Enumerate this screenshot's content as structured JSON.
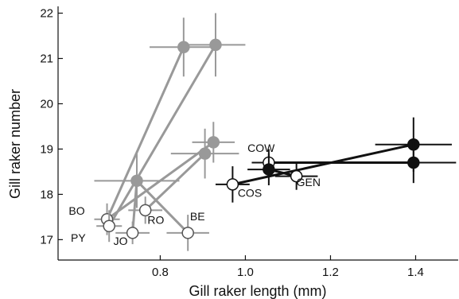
{
  "chart_data": {
    "type": "scatter",
    "title": "",
    "xlabel": "Gill raker length (mm)",
    "ylabel": "Gill raker number",
    "xlim": [
      0.56,
      1.5
    ],
    "ylim": [
      16.55,
      22.15
    ],
    "xticks": [
      0.8,
      1.0,
      1.2,
      1.4
    ],
    "yticks": [
      17,
      18,
      19,
      20,
      21,
      22
    ],
    "grid": false,
    "colors": {
      "gray": "#999999",
      "black": "#111111",
      "open_fill": "#ffffff"
    },
    "points": [
      {
        "id": "BO_open",
        "x": 0.675,
        "y": 17.45,
        "xerr": 0.03,
        "yerr": 0.35,
        "color": "gray",
        "fill": "open"
      },
      {
        "id": "PY_open",
        "x": 0.68,
        "y": 17.3,
        "xerr": 0.03,
        "yerr": 0.35,
        "color": "gray",
        "fill": "open"
      },
      {
        "id": "JO_open",
        "x": 0.735,
        "y": 17.15,
        "xerr": 0.04,
        "yerr": 0.25,
        "color": "gray",
        "fill": "open"
      },
      {
        "id": "RO_open",
        "x": 0.765,
        "y": 17.65,
        "xerr": 0.04,
        "yerr": 0.3,
        "color": "gray",
        "fill": "open"
      },
      {
        "id": "BE_open",
        "x": 0.865,
        "y": 17.15,
        "xerr": 0.05,
        "yerr": 0.4,
        "color": "gray",
        "fill": "open"
      },
      {
        "id": "g_f1",
        "x": 0.855,
        "y": 21.25,
        "xerr": 0.08,
        "yerr": 0.65,
        "color": "gray",
        "fill": "solid"
      },
      {
        "id": "g_f2",
        "x": 0.93,
        "y": 21.3,
        "xerr": 0.07,
        "yerr": 0.7,
        "color": "gray",
        "fill": "solid"
      },
      {
        "id": "g_f3",
        "x": 0.745,
        "y": 18.3,
        "xerr": 0.1,
        "yerr": 0.6,
        "color": "gray",
        "fill": "solid"
      },
      {
        "id": "g_f4",
        "x": 0.905,
        "y": 18.9,
        "xerr": 0.08,
        "yerr": 0.55,
        "color": "gray",
        "fill": "solid"
      },
      {
        "id": "g_f5",
        "x": 0.925,
        "y": 19.15,
        "xerr": 0.05,
        "yerr": 0.45,
        "color": "gray",
        "fill": "solid"
      },
      {
        "id": "COS_open",
        "x": 0.97,
        "y": 18.22,
        "xerr": 0.04,
        "yerr": 0.4,
        "color": "black",
        "fill": "open"
      },
      {
        "id": "COW_open",
        "x": 1.055,
        "y": 18.7,
        "xerr": 0.04,
        "yerr": 0.3,
        "color": "black",
        "fill": "open"
      },
      {
        "id": "GEN_open",
        "x": 1.12,
        "y": 18.4,
        "xerr": 0.05,
        "yerr": 0.3,
        "color": "black",
        "fill": "open"
      },
      {
        "id": "b_f1",
        "x": 1.055,
        "y": 18.55,
        "xerr": 0.05,
        "yerr": 0.35,
        "color": "black",
        "fill": "solid"
      },
      {
        "id": "b_f2",
        "x": 1.395,
        "y": 19.1,
        "xerr": 0.09,
        "yerr": 0.6,
        "color": "black",
        "fill": "solid"
      },
      {
        "id": "b_f3",
        "x": 1.395,
        "y": 18.7,
        "xerr": 0.1,
        "yerr": 0.45,
        "color": "black",
        "fill": "solid"
      }
    ],
    "connections": [
      {
        "from": "BO_open",
        "to": "g_f1",
        "color": "gray"
      },
      {
        "from": "PY_open",
        "to": "g_f2",
        "color": "gray"
      },
      {
        "from": "BO_open",
        "to": "g_f5",
        "color": "gray"
      },
      {
        "from": "JO_open",
        "to": "g_f3",
        "color": "gray"
      },
      {
        "from": "g_f3",
        "to": "BE_open",
        "color": "gray"
      },
      {
        "from": "RO_open",
        "to": "g_f4",
        "color": "gray"
      },
      {
        "from": "COS_open",
        "to": "b_f2",
        "color": "black"
      },
      {
        "from": "COW_open",
        "to": "b_f3",
        "color": "black"
      },
      {
        "from": "GEN_open",
        "to": "b_f1",
        "color": "black"
      }
    ],
    "annotations": [
      {
        "text": "BO",
        "x": 0.585,
        "y": 17.55
      },
      {
        "text": "PY",
        "x": 0.59,
        "y": 16.95
      },
      {
        "text": "JO",
        "x": 0.69,
        "y": 16.88
      },
      {
        "text": "RO",
        "x": 0.77,
        "y": 17.35
      },
      {
        "text": "BE",
        "x": 0.87,
        "y": 17.43
      },
      {
        "text": "COS",
        "x": 0.982,
        "y": 17.95
      },
      {
        "text": "COW",
        "x": 1.005,
        "y": 18.94
      },
      {
        "text": "GEN",
        "x": 1.12,
        "y": 18.18
      }
    ]
  }
}
